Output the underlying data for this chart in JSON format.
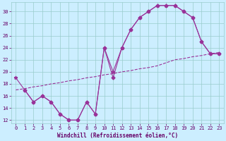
{
  "xlabel": "Windchill (Refroidissement éolien,°C)",
  "bg_color": "#cceeff",
  "line_color": "#993399",
  "xlim": [
    -0.5,
    23.5
  ],
  "ylim": [
    11.5,
    31.5
  ],
  "yticks": [
    12,
    14,
    16,
    18,
    20,
    22,
    24,
    26,
    28,
    30
  ],
  "xticks": [
    0,
    1,
    2,
    3,
    4,
    5,
    6,
    7,
    8,
    9,
    10,
    11,
    12,
    13,
    14,
    15,
    16,
    17,
    18,
    19,
    20,
    21,
    22,
    23
  ],
  "series1_x": [
    0,
    1,
    2,
    3,
    4,
    5,
    6,
    7,
    8,
    9,
    10,
    11,
    12,
    13,
    14,
    15,
    16,
    17,
    18,
    19,
    20,
    21,
    22,
    23
  ],
  "series1_y": [
    19,
    17,
    15,
    16,
    15,
    13,
    12,
    12,
    15,
    13,
    24,
    20,
    24,
    27,
    29,
    30,
    31,
    31,
    31,
    30,
    29,
    25,
    23,
    23
  ],
  "series2_x": [
    1,
    2,
    3,
    4,
    5,
    6,
    7,
    8,
    9,
    10,
    11,
    12,
    13,
    14,
    15,
    16,
    17,
    18,
    19,
    20,
    21,
    22,
    23
  ],
  "series2_y": [
    17,
    15,
    16,
    15,
    13,
    12,
    12,
    15,
    13,
    24,
    19,
    24,
    27,
    29,
    30,
    31,
    31,
    31,
    30,
    29,
    25,
    23,
    23
  ],
  "series3_x": [
    0,
    1,
    2,
    3,
    4,
    5,
    6,
    7,
    8,
    9,
    10,
    11,
    12,
    13,
    14,
    15,
    16,
    17,
    18,
    19,
    20,
    21,
    22,
    23
  ],
  "series3_y": [
    17.0,
    17.2,
    17.5,
    17.7,
    18.0,
    18.2,
    18.5,
    18.7,
    19.0,
    19.2,
    19.5,
    19.7,
    20.0,
    20.2,
    20.5,
    20.7,
    21.0,
    21.5,
    22.0,
    22.2,
    22.5,
    22.7,
    23.0,
    23.2
  ],
  "grid_color": "#99cccc",
  "font_color": "#660066",
  "grid_minor_color": "#bbdddd"
}
